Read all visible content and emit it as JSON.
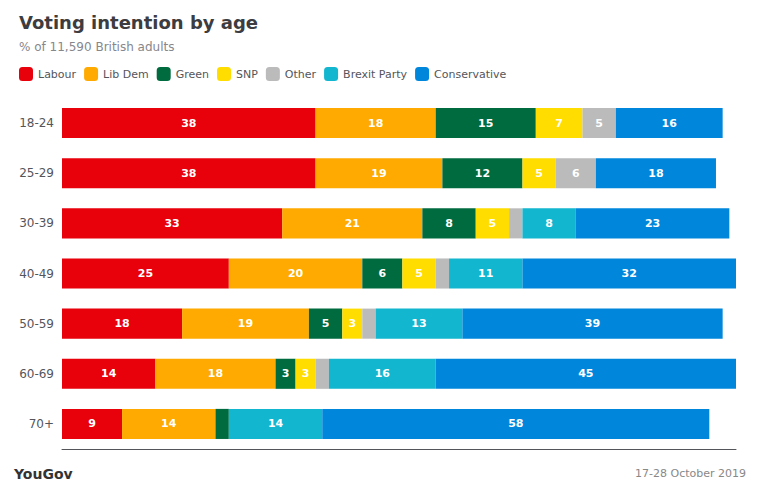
{
  "chart_data": {
    "type": "bar",
    "orientation": "horizontal",
    "stacked": true,
    "title": "Voting intention by age",
    "subtitle": "% of 11,590 British adults",
    "annotations": [
      "YouGov",
      "17-28 October 2019"
    ],
    "categories": [
      "18-24",
      "25-29",
      "30-39",
      "40-49",
      "50-59",
      "60-69",
      "70+"
    ],
    "series": [
      {
        "name": "Labour",
        "color": "#E8000B",
        "values": [
          38,
          38,
          33,
          25,
          18,
          14,
          9
        ],
        "value_labels": [
          "38",
          "38",
          "33",
          "25",
          "18",
          "14",
          "9"
        ]
      },
      {
        "name": "Lib Dem",
        "color": "#FFAA00",
        "values": [
          18,
          19,
          21,
          20,
          19,
          18,
          14
        ],
        "value_labels": [
          "18",
          "19",
          "21",
          "20",
          "19",
          "18",
          "14"
        ]
      },
      {
        "name": "Green",
        "color": "#006B3F",
        "values": [
          15,
          12,
          8,
          6,
          5,
          3,
          2
        ],
        "value_labels": [
          "15",
          "12",
          "8",
          "6",
          "5",
          "3",
          null
        ]
      },
      {
        "name": "SNP",
        "color": "#FFDD00",
        "values": [
          7,
          5,
          5,
          5,
          3,
          3,
          0
        ],
        "value_labels": [
          "7",
          "5",
          "5",
          "5",
          "3",
          "3",
          null
        ]
      },
      {
        "name": "Other",
        "color": "#BBBBBB",
        "values": [
          5,
          6,
          2,
          2,
          2,
          2,
          0
        ],
        "value_labels": [
          "5",
          "6",
          null,
          null,
          null,
          null,
          null
        ]
      },
      {
        "name": "Brexit Party",
        "color": "#12B6CF",
        "values": [
          0,
          0,
          8,
          11,
          13,
          16,
          14
        ],
        "value_labels": [
          null,
          null,
          "8",
          "11",
          "13",
          "16",
          "14"
        ]
      },
      {
        "name": "Conservative",
        "color": "#0087DC",
        "values": [
          16,
          18,
          23,
          32,
          39,
          45,
          58
        ],
        "value_labels": [
          "16",
          "18",
          "23",
          "32",
          "39",
          "45",
          "58"
        ]
      }
    ],
    "xlim": [
      0,
      101
    ],
    "xticks": [],
    "data_labels": true,
    "tick_labels": "y",
    "grid": false,
    "legend": "top"
  }
}
